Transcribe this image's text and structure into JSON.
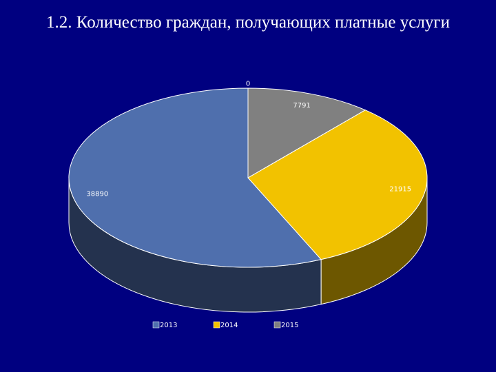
{
  "chart_data": {
    "type": "pie3d",
    "title": "1.2. Количество граждан, получающих платные услуги",
    "categories": [
      "2013",
      "2014",
      "2015",
      null
    ],
    "values": [
      38890,
      21915,
      7791,
      0
    ],
    "colors": [
      "#4f6fad",
      "#f2c200",
      "#808080",
      "#4472c4"
    ]
  }
}
